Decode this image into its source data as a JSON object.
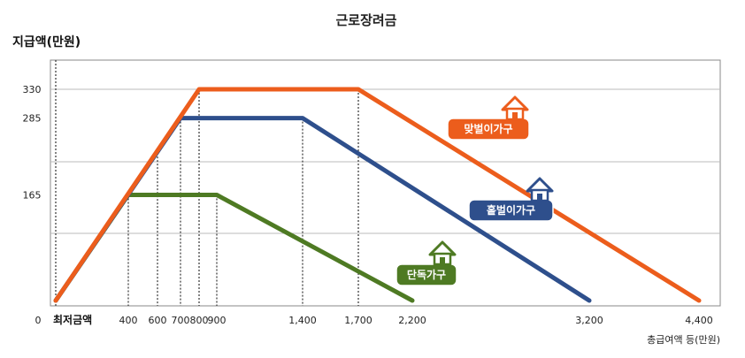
{
  "chart_data": {
    "type": "line",
    "title": "근로장려금",
    "ylabel": "지급액(만원)",
    "xlabel": "총급여액 등(만원)",
    "x_ticks": [
      0,
      400,
      600,
      700,
      800,
      900,
      1400,
      1700,
      2200,
      3200,
      4400
    ],
    "x_tick_labels": [
      "0",
      "400",
      "600",
      "700",
      "800",
      "900",
      "1,400",
      "1,700",
      "2,200",
      "3,200",
      "4,400"
    ],
    "y_ticks": [
      165,
      285,
      330
    ],
    "y_tick_labels": [
      "165",
      "285",
      "330"
    ],
    "min_wage_label": "최저금액",
    "xlim": [
      0,
      4400
    ],
    "ylim": [
      0,
      330
    ],
    "grid": "horizontal",
    "series": [
      {
        "name": "단독가구",
        "color": "#4e7a23",
        "points": [
          [
            0,
            0
          ],
          [
            400,
            165
          ],
          [
            900,
            165
          ],
          [
            2200,
            0
          ]
        ]
      },
      {
        "name": "홑벌이가구",
        "color": "#2e4f8c",
        "points": [
          [
            0,
            0
          ],
          [
            700,
            285
          ],
          [
            1400,
            285
          ],
          [
            3200,
            0
          ]
        ]
      },
      {
        "name": "맞벌이가구",
        "color": "#ec5d1c",
        "points": [
          [
            0,
            0
          ],
          [
            800,
            330
          ],
          [
            1700,
            330
          ],
          [
            4400,
            0
          ]
        ]
      }
    ]
  }
}
